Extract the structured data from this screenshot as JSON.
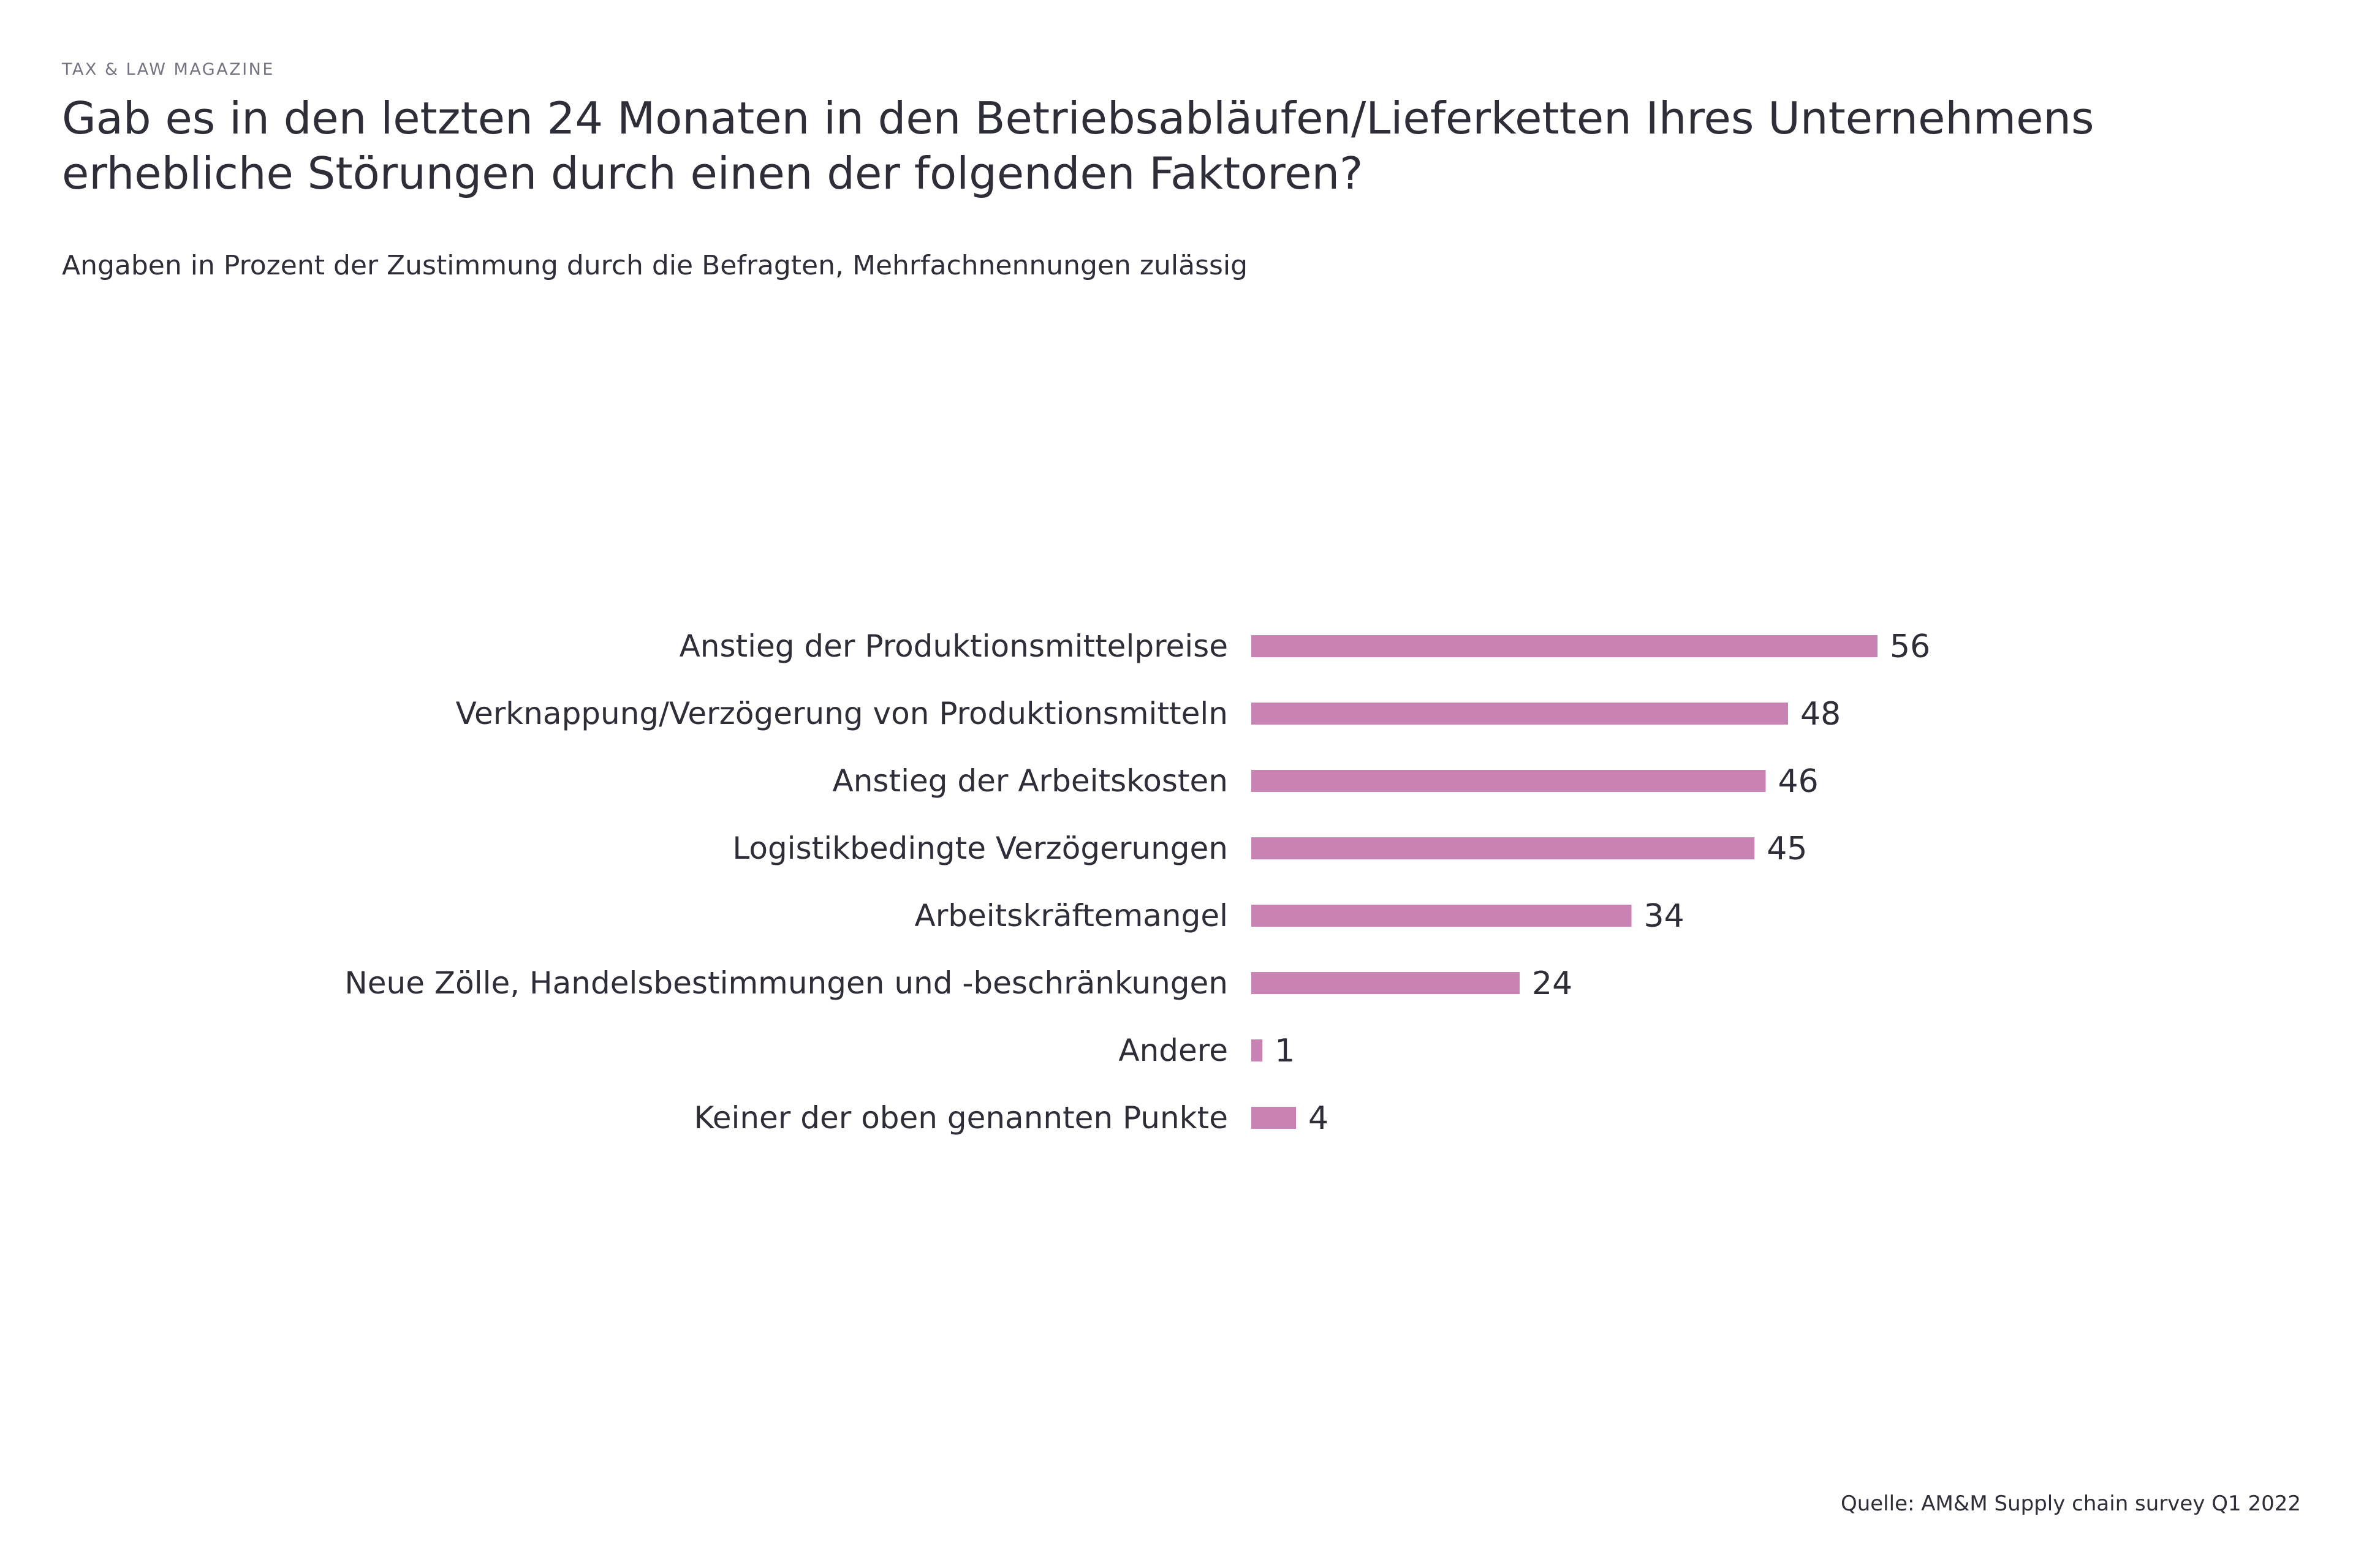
{
  "header": {
    "kicker": "TAX & LAW MAGAZINE",
    "title": "Gab es in den letzten 24 Monaten in den Betriebsabläufen/Lieferketten Ihres Unternehmens erhebliche Störungen durch einen der folgenden Faktoren?",
    "subtitle": "Angaben in Prozent der Zustimmung durch die Befragten, Mehrfachnennungen zulässig"
  },
  "footer": {
    "source": "Quelle: AM&M Supply chain survey Q1 2022"
  },
  "chart_data": {
    "type": "bar",
    "orientation": "horizontal",
    "title": "Gab es in den letzten 24 Monaten in den Betriebsabläufen/Lieferketten Ihres Unternehmens erhebliche Störungen durch einen der folgenden Faktoren?",
    "xlabel": "",
    "ylabel": "",
    "categories": [
      "Anstieg der Produktionsmittelpreise",
      "Verknappung/Verzögerung von Produktionsmitteln",
      "Anstieg der Arbeitskosten",
      "Logistikbedingte Verzögerungen",
      "Arbeitskräftemangel",
      "Neue Zölle, Handelsbestimmungen und -beschränkungen",
      "Andere",
      "Keiner der oben genannten Punkte"
    ],
    "values": [
      56,
      48,
      46,
      45,
      34,
      24,
      1,
      4
    ],
    "xlim": [
      0,
      56
    ],
    "grid": false,
    "legend": "none",
    "bar_color": "#c882b4"
  }
}
